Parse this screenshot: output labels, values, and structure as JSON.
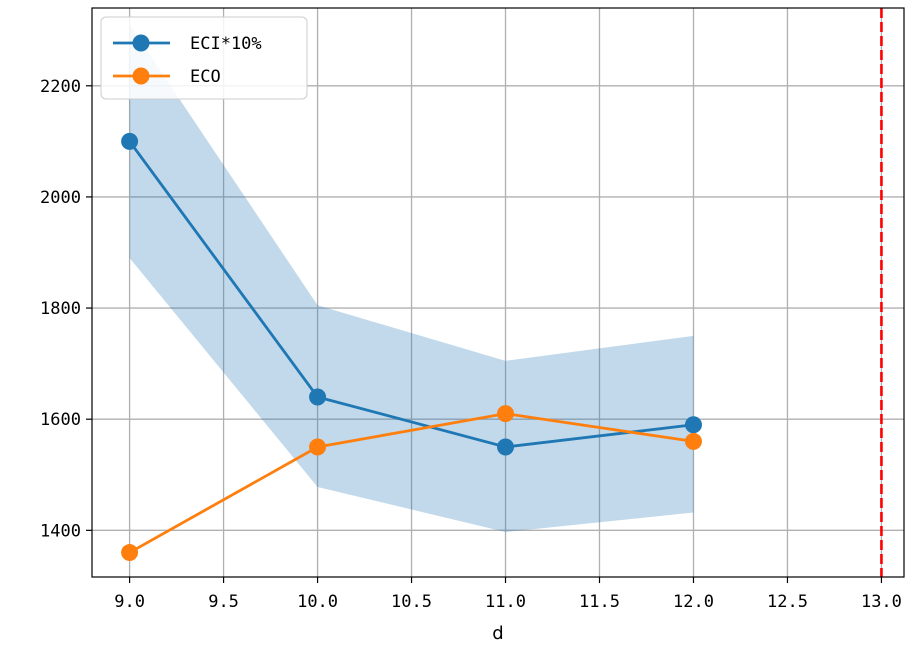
{
  "chart_data": {
    "type": "line",
    "xlabel": "d",
    "ylabel": "",
    "xlim": [
      8.8,
      13.12
    ],
    "ylim": [
      1316,
      2340
    ],
    "x_ticks": [
      9.0,
      9.5,
      10.0,
      10.5,
      11.0,
      11.5,
      12.0,
      12.5,
      13.0
    ],
    "x_tick_labels": [
      "9.0",
      "9.5",
      "10.0",
      "10.5",
      "11.0",
      "11.5",
      "12.0",
      "12.5",
      "13.0"
    ],
    "y_ticks": [
      1400,
      1600,
      1800,
      2000,
      2200
    ],
    "y_tick_labels": [
      "1400",
      "1600",
      "1800",
      "2000",
      "2200"
    ],
    "grid": true,
    "legend_position": "top-left",
    "series": [
      {
        "name": "ECI*10%",
        "color": "#1f77b4",
        "marker": "circle",
        "x": [
          9.0,
          10.0,
          11.0,
          12.0
        ],
        "values": [
          2100,
          1640,
          1550,
          1590
        ],
        "band": {
          "color": "#1f77b4",
          "opacity": 0.28,
          "upper": [
            2310,
            1805,
            1705,
            1750
          ],
          "lower": [
            1890,
            1478,
            1397,
            1432
          ]
        }
      },
      {
        "name": "ECO",
        "color": "#ff7f0e",
        "marker": "circle",
        "x": [
          9.0,
          10.0,
          11.0,
          12.0
        ],
        "values": [
          1360,
          1550,
          1610,
          1560
        ]
      }
    ],
    "reference_lines": [
      {
        "orientation": "vertical",
        "x": 13.0,
        "color": "#ff0000",
        "style": "dashed"
      }
    ]
  }
}
